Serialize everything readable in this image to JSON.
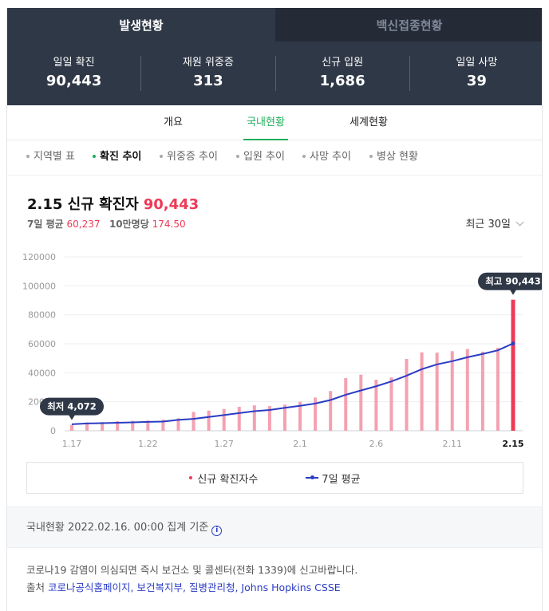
{
  "tabs": {
    "active": "발생현황",
    "inactive": "백신접종현황"
  },
  "stats": [
    {
      "label": "일일 확진",
      "value": "90,443"
    },
    {
      "label": "재원 위중증",
      "value": "313"
    },
    {
      "label": "신규 입원",
      "value": "1,686"
    },
    {
      "label": "일일 사망",
      "value": "39"
    }
  ],
  "subtabs": [
    "개요",
    "국내현황",
    "세계현황"
  ],
  "chips": [
    "지역별 표",
    "확진 추이",
    "위중증 추이",
    "입원 추이",
    "사망 추이",
    "병상 현황"
  ],
  "headline": {
    "title": "2.15 신규 확진자",
    "value": "90,443"
  },
  "subline": {
    "avg_label": "7일 평균",
    "avg_value": "60,237",
    "per_label": "10만명당",
    "per_value": "174.50"
  },
  "period": "최근 30일",
  "legend": {
    "bars": "신규 확진자수",
    "line": "7일 평균"
  },
  "basis": "국내현황 2022.02.16. 00:00 집계 기준",
  "notice": "코로나19 감염이 의심되면 즉시 보건소 및 콜센터(전화 1339)에 신고바랍니다.",
  "sources": {
    "prefix": "출처",
    "links": [
      "코로나공식홈페이지",
      "보건복지부",
      "질병관리청",
      "Johns Hopkins CSSE"
    ]
  },
  "colors": {
    "accent_green": "#1fae5b",
    "bar": "#f4a1b1",
    "bar_highlight": "#ee3a57",
    "line": "#2b3cc4",
    "header_bg": "#2f3847"
  },
  "chart_data": {
    "type": "bar",
    "categories": [
      "1.17",
      "1.18",
      "1.19",
      "1.20",
      "1.21",
      "1.22",
      "1.23",
      "1.24",
      "1.25",
      "1.26",
      "1.27",
      "1.28",
      "1.29",
      "1.30",
      "1.31",
      "2.1",
      "2.2",
      "2.3",
      "2.4",
      "2.5",
      "2.6",
      "2.7",
      "2.8",
      "2.9",
      "2.10",
      "2.11",
      "2.12",
      "2.13",
      "2.14",
      "2.15"
    ],
    "x_tick_labels": [
      "1.17",
      "1.22",
      "1.27",
      "2.1",
      "2.6",
      "2.11",
      "2.15"
    ],
    "series": [
      {
        "name": "신규 확진자수",
        "type": "bar",
        "values": [
          4072,
          5800,
          6000,
          6600,
          6800,
          7000,
          7600,
          8600,
          13000,
          13900,
          15000,
          16500,
          17500,
          17000,
          18000,
          20000,
          22900,
          27400,
          36300,
          38700,
          35200,
          36700,
          49500,
          54100,
          53900,
          54900,
          56400,
          54600,
          57200,
          90443
        ]
      },
      {
        "name": "7일 평균",
        "type": "line",
        "values": [
          4500,
          5000,
          5200,
          5500,
          5800,
          6100,
          6300,
          7500,
          8200,
          9500,
          10800,
          12200,
          13500,
          14300,
          15800,
          17200,
          18800,
          21200,
          24800,
          27800,
          30700,
          34000,
          38000,
          42500,
          45800,
          48000,
          50700,
          53000,
          55500,
          60237
        ]
      }
    ],
    "ylim": [
      0,
      120000
    ],
    "y_ticks": [
      0,
      20000,
      40000,
      60000,
      80000,
      100000,
      120000
    ],
    "annotations": {
      "min": "최저 4,072",
      "max": "최고 90,443"
    },
    "grid": true
  }
}
